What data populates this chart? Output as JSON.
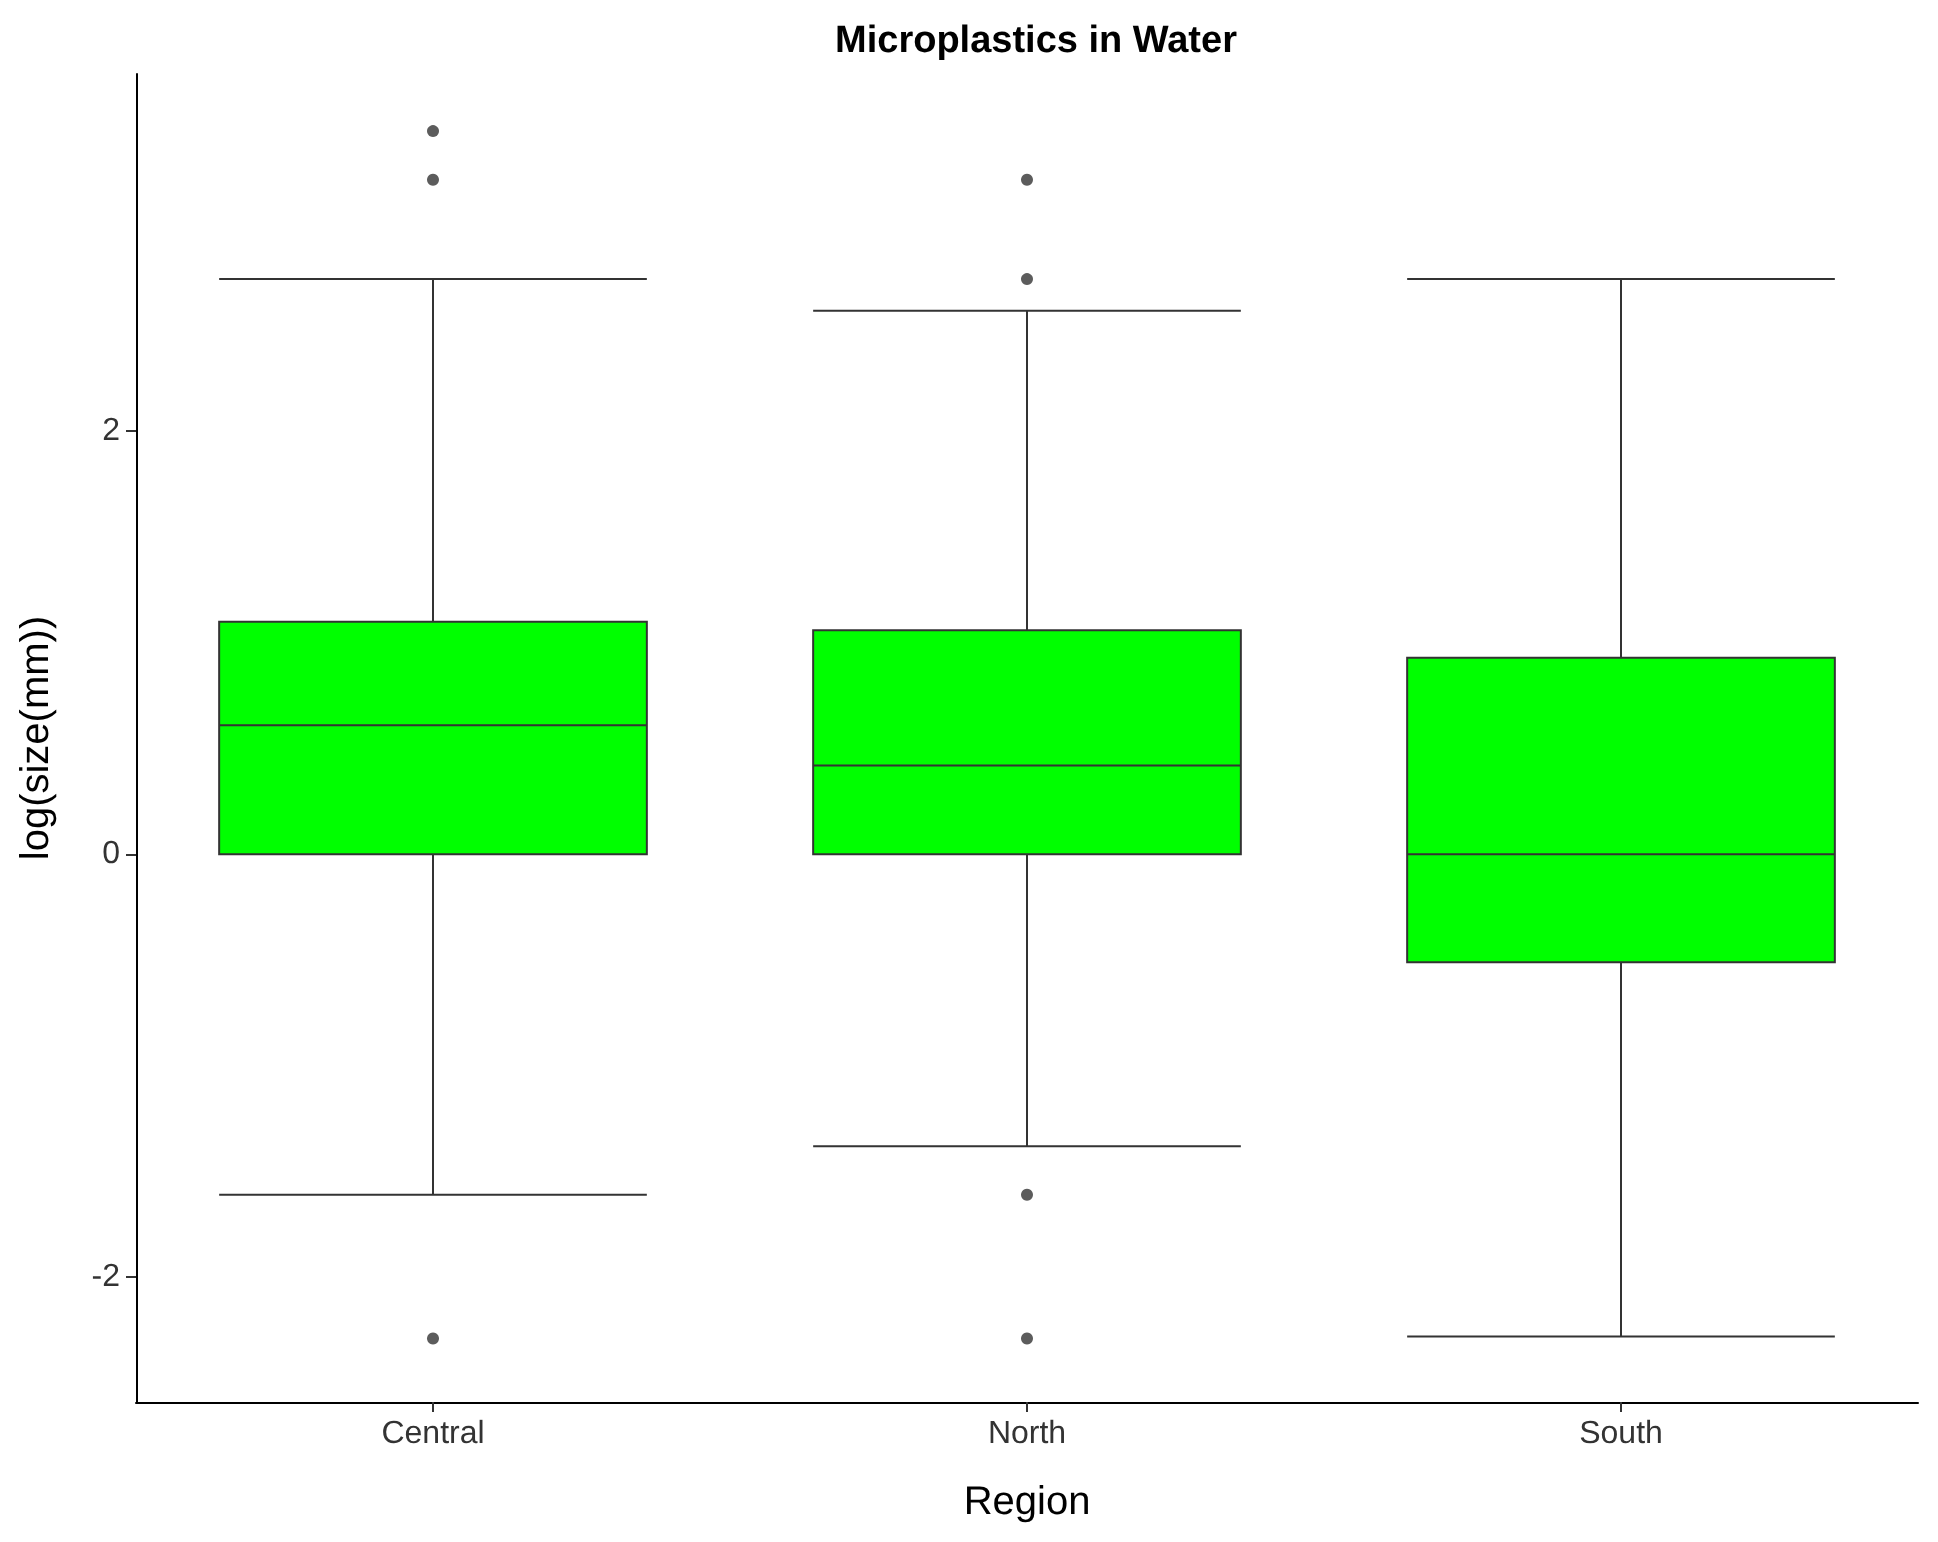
{
  "chart_data": {
    "type": "box",
    "title": "Microplastics in Water",
    "xlabel": "Region",
    "ylabel": "log(size(mm))",
    "categories": [
      "Central",
      "North",
      "South"
    ],
    "series": [
      {
        "color": "#00ff00",
        "boxes": [
          {
            "low": -1.61,
            "q1": 0,
            "median": 0.61,
            "q3": 1.1,
            "high": 2.72,
            "outliers": [
              3.42,
              3.19,
              -2.29
            ]
          },
          {
            "low": -1.38,
            "q1": 0,
            "median": 0.42,
            "q3": 1.06,
            "high": 2.57,
            "outliers": [
              3.19,
              2.72,
              -1.61,
              -2.29
            ]
          },
          {
            "low": -2.28,
            "q1": -0.51,
            "median": 0,
            "q3": 0.93,
            "high": 2.72
          }
        ]
      }
    ],
    "ylim": [
      -2.59,
      3.69
    ],
    "yticks": [
      -2,
      0,
      2
    ]
  }
}
